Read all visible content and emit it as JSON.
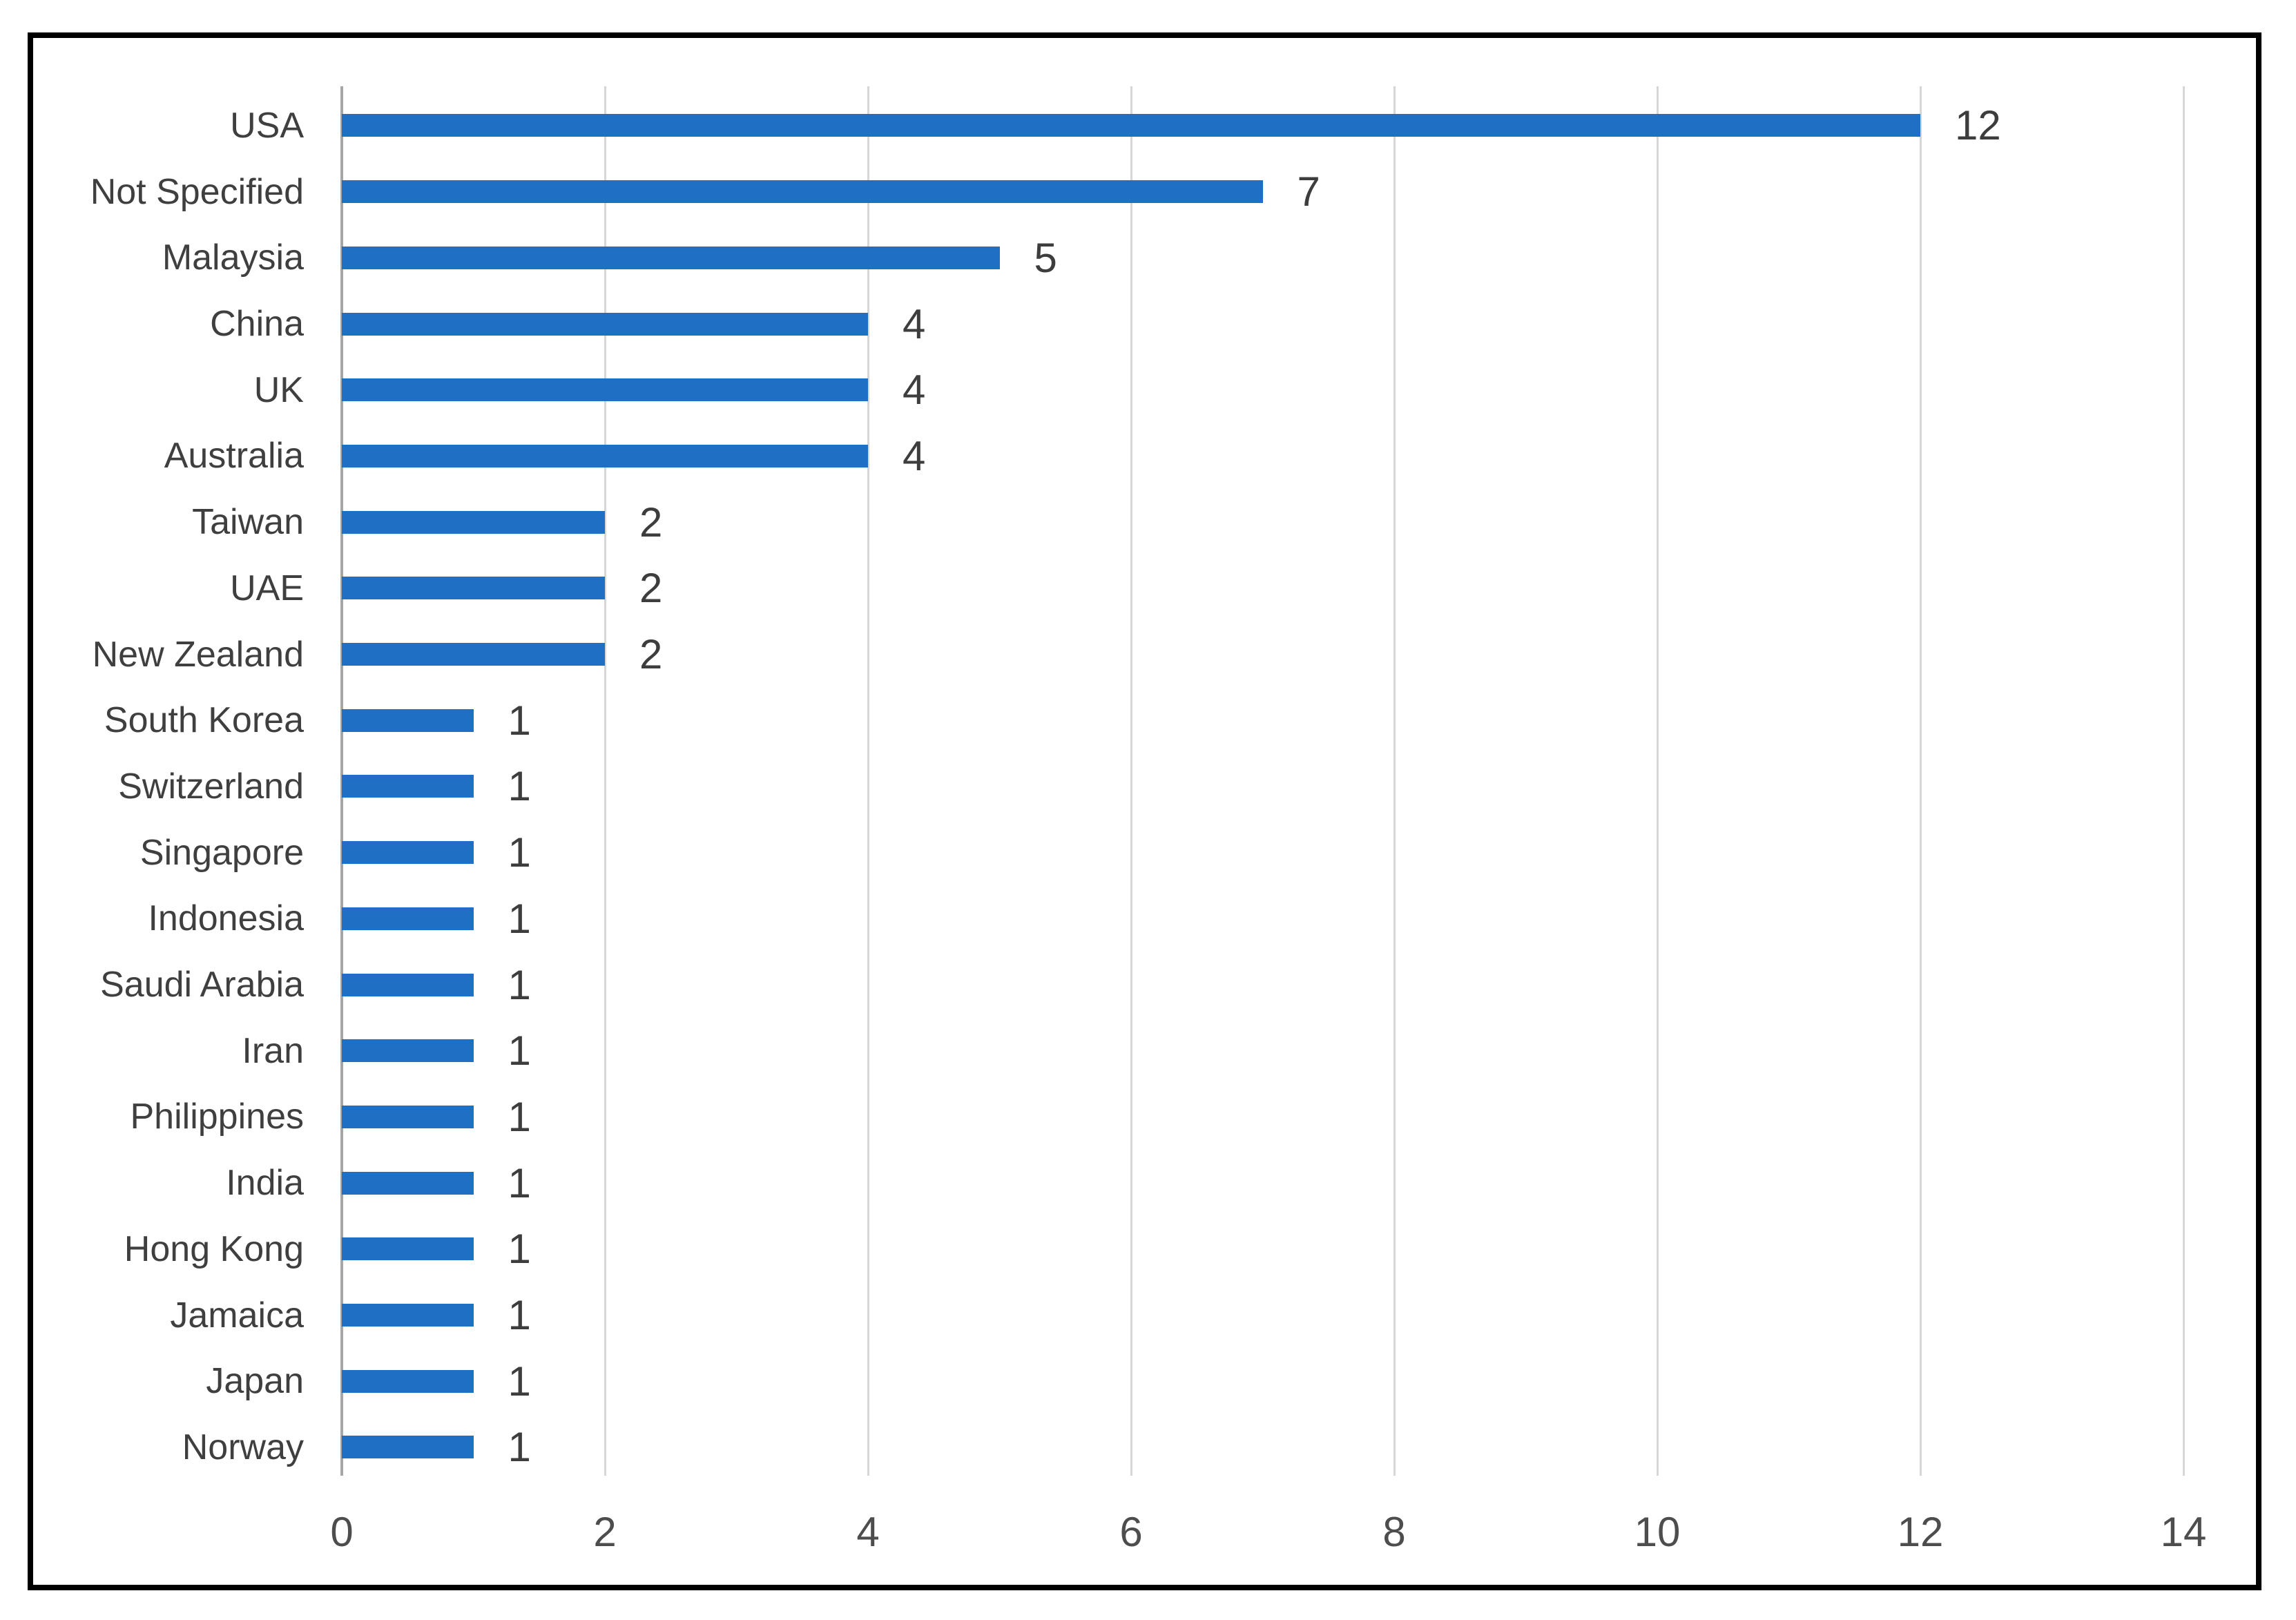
{
  "chart_data": {
    "type": "bar",
    "orientation": "horizontal",
    "title": "",
    "xlabel": "",
    "ylabel": "",
    "categories": [
      "USA",
      "Not Specified",
      "Malaysia",
      "China",
      "UK",
      "Australia",
      "Taiwan",
      "UAE",
      "New Zealand",
      "South Korea",
      "Switzerland",
      "Singapore",
      "Indonesia",
      "Saudi Arabia",
      "Iran",
      "Philippines",
      "India",
      "Hong Kong",
      "Jamaica",
      "Japan",
      "Norway"
    ],
    "values": [
      12,
      7,
      5,
      4,
      4,
      4,
      2,
      2,
      2,
      1,
      1,
      1,
      1,
      1,
      1,
      1,
      1,
      1,
      1,
      1,
      1
    ],
    "x_ticks": [
      0,
      2,
      4,
      6,
      8,
      10,
      12,
      14
    ],
    "xlim": [
      0,
      14
    ],
    "grid": true,
    "legend": false,
    "data_labels_shown": true,
    "styles": {
      "bar_color": "#1F6FC5",
      "category_label_color": "#3F3F3F",
      "value_label_color": "#3D3D3D",
      "tick_label_color": "#4D4D4D",
      "gridline_color": "#D6D6D6",
      "axis_line_color": "#A6A6A6",
      "frame_border_color": "#000000",
      "background_color": "#FFFFFF"
    }
  }
}
